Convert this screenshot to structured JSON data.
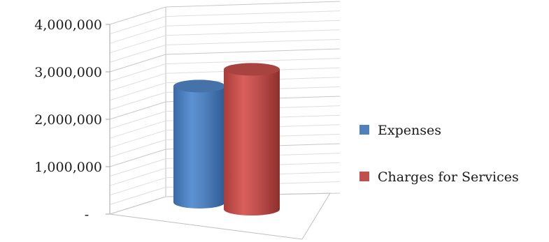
{
  "chart_data": {
    "type": "bar",
    "style": "3d-cylinder",
    "categories": [
      ""
    ],
    "series": [
      {
        "name": "Expenses",
        "values": [
          2450000
        ],
        "color": "#4f81bd"
      },
      {
        "name": "Charges for Services",
        "values": [
          2950000
        ],
        "color": "#c0504d"
      }
    ],
    "yticks": [
      {
        "value": 0,
        "label": "-"
      },
      {
        "value": 1000000,
        "label": "1,000,000"
      },
      {
        "value": 2000000,
        "label": "2,000,000"
      },
      {
        "value": 3000000,
        "label": "3,000,000"
      },
      {
        "value": 4000000,
        "label": "4,000,000"
      }
    ],
    "ylim": [
      0,
      4000000
    ],
    "grid": true,
    "minor_gridlines": 4,
    "legend": "right"
  }
}
